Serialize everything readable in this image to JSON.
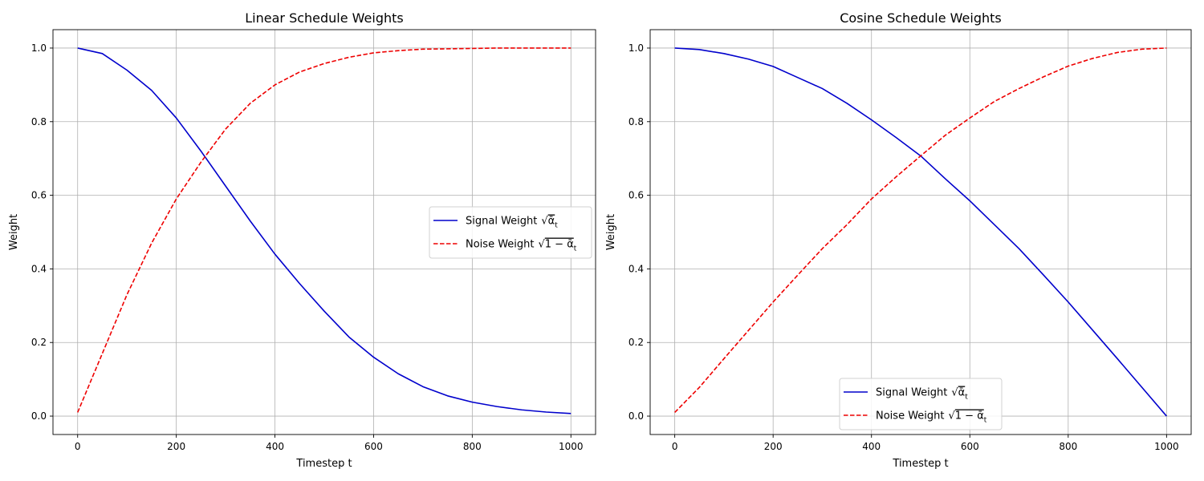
{
  "chart_data": [
    {
      "type": "line",
      "title": "Linear Schedule Weights",
      "xlabel": "Timestep t",
      "ylabel": "Weight",
      "xlim": [
        -50,
        1050
      ],
      "ylim": [
        -0.05,
        1.05
      ],
      "xticks": [
        0,
        200,
        400,
        600,
        800,
        1000
      ],
      "yticks": [
        0.0,
        0.2,
        0.4,
        0.6,
        0.8,
        1.0
      ],
      "grid": true,
      "legend": "center-right",
      "x": [
        0,
        50,
        100,
        150,
        200,
        250,
        300,
        350,
        400,
        450,
        500,
        550,
        600,
        650,
        700,
        750,
        800,
        850,
        900,
        950,
        1000
      ],
      "series": [
        {
          "name": "Signal Weight",
          "formula_expr": "ᾱ",
          "formula_sub": "t",
          "color": "#0000cc",
          "style": "solid",
          "values": [
            1.0,
            0.985,
            0.94,
            0.885,
            0.81,
            0.72,
            0.625,
            0.53,
            0.44,
            0.36,
            0.285,
            0.215,
            0.16,
            0.115,
            0.08,
            0.055,
            0.038,
            0.026,
            0.017,
            0.011,
            0.007
          ]
        },
        {
          "name": "Noise Weight",
          "formula_expr": "1 − ᾱ",
          "formula_sub": "t",
          "color": "#ee0000",
          "style": "dashed",
          "values": [
            0.01,
            0.17,
            0.33,
            0.47,
            0.59,
            0.69,
            0.78,
            0.85,
            0.9,
            0.935,
            0.958,
            0.975,
            0.987,
            0.993,
            0.997,
            0.998,
            0.999,
            1.0,
            1.0,
            1.0,
            1.0
          ]
        }
      ]
    },
    {
      "type": "line",
      "title": "Cosine Schedule Weights",
      "xlabel": "Timestep t",
      "ylabel": "Weight",
      "xlim": [
        -50,
        1050
      ],
      "ylim": [
        -0.05,
        1.05
      ],
      "xticks": [
        0,
        200,
        400,
        600,
        800,
        1000
      ],
      "yticks": [
        0.0,
        0.2,
        0.4,
        0.6,
        0.8,
        1.0
      ],
      "grid": true,
      "legend": "bottom-center",
      "x": [
        0,
        50,
        100,
        150,
        200,
        250,
        300,
        350,
        400,
        450,
        500,
        550,
        600,
        650,
        700,
        750,
        800,
        850,
        900,
        950,
        1000
      ],
      "series": [
        {
          "name": "Signal Weight",
          "formula_expr": "ᾱ",
          "formula_sub": "t",
          "color": "#0000cc",
          "style": "solid",
          "values": [
            1.0,
            0.996,
            0.985,
            0.97,
            0.95,
            0.92,
            0.89,
            0.85,
            0.805,
            0.757,
            0.707,
            0.645,
            0.585,
            0.52,
            0.455,
            0.383,
            0.31,
            0.233,
            0.156,
            0.078,
            0.0
          ]
        },
        {
          "name": "Noise Weight",
          "formula_expr": "1 − ᾱ",
          "formula_sub": "t",
          "color": "#ee0000",
          "style": "dashed",
          "values": [
            0.01,
            0.078,
            0.156,
            0.233,
            0.31,
            0.383,
            0.455,
            0.52,
            0.59,
            0.65,
            0.707,
            0.763,
            0.81,
            0.855,
            0.89,
            0.922,
            0.951,
            0.972,
            0.988,
            0.997,
            1.0
          ]
        }
      ]
    }
  ]
}
